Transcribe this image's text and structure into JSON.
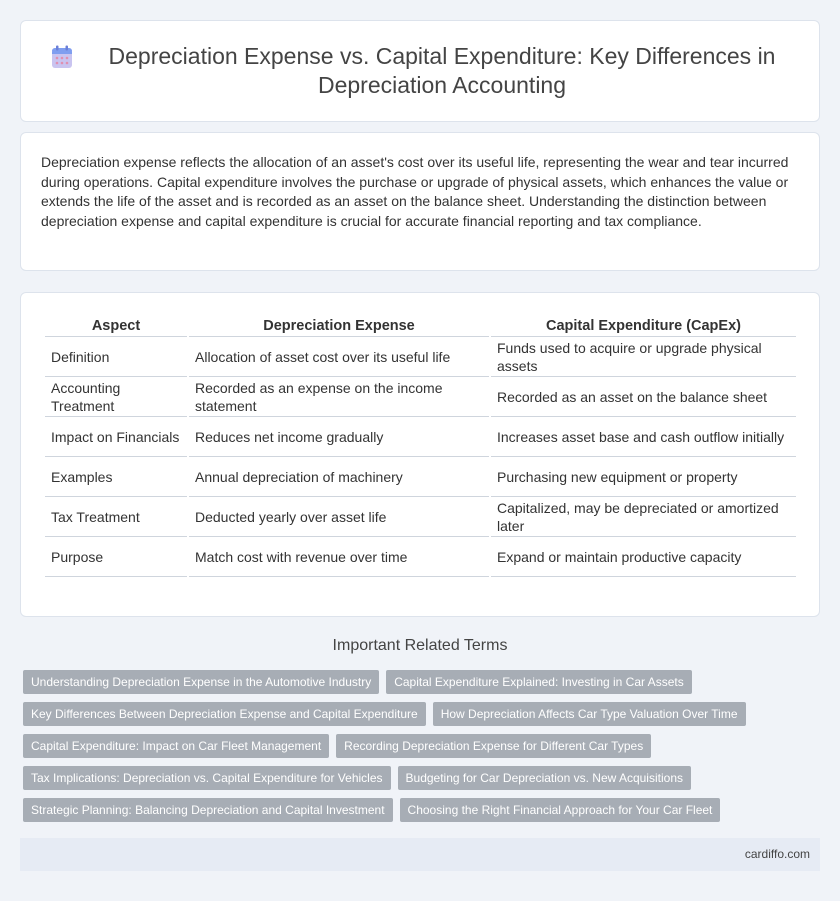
{
  "header": {
    "title": "Depreciation Expense vs. Capital Expenditure: Key Differences in Depreciation Accounting",
    "icon": "calendar-icon"
  },
  "intro": {
    "text": "Depreciation expense reflects the allocation of an asset's cost over its useful life, representing the wear and tear incurred during operations. Capital expenditure involves the purchase or upgrade of physical assets, which enhances the value or extends the life of the asset and is recorded as an asset on the balance sheet. Understanding the distinction between depreciation expense and capital expenditure is crucial for accurate financial reporting and tax compliance."
  },
  "table": {
    "headers": [
      "Aspect",
      "Depreciation Expense",
      "Capital Expenditure (CapEx)"
    ],
    "rows": [
      [
        "Definition",
        "Allocation of asset cost over its useful life",
        "Funds used to acquire or upgrade physical assets"
      ],
      [
        "Accounting Treatment",
        "Recorded as an expense on the income statement",
        "Recorded as an asset on the balance sheet"
      ],
      [
        "Impact on Financials",
        "Reduces net income gradually",
        "Increases asset base and cash outflow initially"
      ],
      [
        "Examples",
        "Annual depreciation of machinery",
        "Purchasing new equipment or property"
      ],
      [
        "Tax Treatment",
        "Deducted yearly over asset life",
        "Capitalized, may be depreciated or amortized later"
      ],
      [
        "Purpose",
        "Match cost with revenue over time",
        "Expand or maintain productive capacity"
      ]
    ]
  },
  "related": {
    "title": "Important Related Terms",
    "tags": [
      [
        "Understanding Depreciation Expense in the Automotive Industry",
        "Capital Expenditure Explained: Investing in Car Assets"
      ],
      [
        "Key Differences Between Depreciation Expense and Capital Expenditure",
        "How Depreciation Affects Car Type Valuation Over Time"
      ],
      [
        "Capital Expenditure: Impact on Car Fleet Management",
        "Recording Depreciation Expense for Different Car Types"
      ],
      [
        "Tax Implications: Depreciation vs. Capital Expenditure for Vehicles",
        "Budgeting for Car Depreciation vs. New Acquisitions"
      ],
      [
        "Strategic Planning: Balancing Depreciation and Capital Investment",
        "Choosing the Right Financial Approach for Your Car Fleet"
      ]
    ]
  },
  "footer": {
    "site": "cardiffo.com"
  }
}
